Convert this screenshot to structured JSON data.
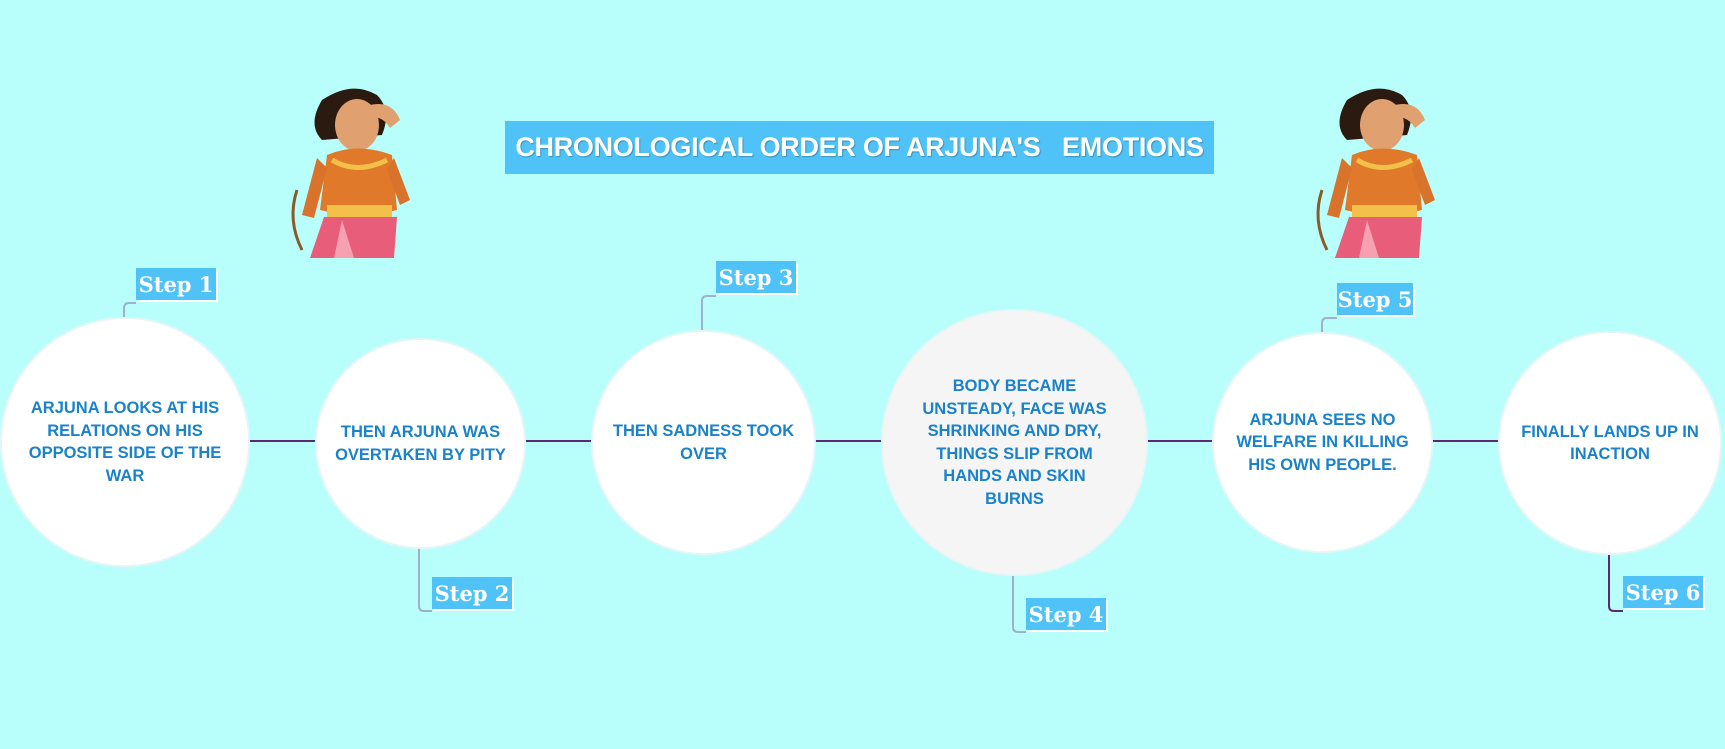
{
  "title": "CHRONOLOGICAL ORDER OF ARJUNA'S   EMOTIONS",
  "colors": {
    "background": "#b8fffb",
    "title_bg": "#4fc3f7",
    "node_text": "#1a82c8",
    "connector": "#5b2a6e",
    "leader": "#9fb0c8",
    "step_bg": "#4fc3f7"
  },
  "images": {
    "left": "arjuna-figure",
    "right": "arjuna-figure"
  },
  "steps": [
    {
      "label": "Step 1",
      "text": "ARJUNA LOOKS AT HIS\nRELATIONS  ON HIS\nOPPOSITE SIDE OF THE\nWAR"
    },
    {
      "label": "Step 2",
      "text": "THEN ARJUNA WAS\nOVERTAKEN BY PITY"
    },
    {
      "label": "Step 3",
      "text": "THEN SADNESS TOOK\nOVER"
    },
    {
      "label": "Step 4",
      "text": "BODY BECAME\nUNSTEADY, FACE WAS\nSHRINKING AND DRY,\nTHINGS SLIP FROM\nHANDS AND SKIN\nBURNS"
    },
    {
      "label": "Step 5",
      "text": "ARJUNA SEES NO\nWELFARE IN KILLING\nHIS OWN PEOPLE."
    },
    {
      "label": "Step 6",
      "text": "FINALLY LANDS UP IN\nINACTION"
    }
  ]
}
